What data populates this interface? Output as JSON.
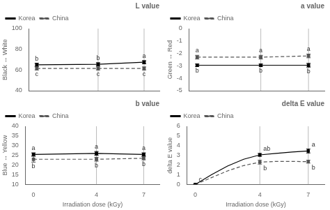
{
  "chart_data": [
    {
      "type": "line",
      "title": "L value",
      "y_label": "Black ↔ White",
      "x": [
        0,
        4,
        7
      ],
      "xlim": [
        -0.5,
        8
      ],
      "xticks": [
        0,
        4,
        7
      ],
      "ylim": [
        40,
        100
      ],
      "yticks": [
        40,
        60,
        80,
        100
      ],
      "grid": false,
      "legend": "upper left",
      "tick_labels": "y",
      "vlines": [
        {
          "x": 4,
          "color": "#aaaaaa"
        },
        {
          "x": 7,
          "color": "#aaaaaa"
        }
      ],
      "series": [
        {
          "name": "Korea",
          "color": "#000000",
          "line_style": "solid",
          "marker": "square",
          "values": [
            65.0,
            65.5,
            67.5
          ],
          "errors": [
            1.5,
            1.5,
            1.5
          ],
          "point_labels": [
            "b",
            "b",
            "a"
          ]
        },
        {
          "name": "China",
          "color": "#555555",
          "line_style": "dashed",
          "marker": "square",
          "values": [
            61.5,
            61.5,
            61.5
          ],
          "errors": [
            1.5,
            1.5,
            1.5
          ],
          "point_labels": [
            "c",
            "c",
            "c"
          ]
        }
      ]
    },
    {
      "type": "line",
      "title": "a value",
      "y_label": "Green ↔ Red",
      "x": [
        0,
        4,
        7
      ],
      "xlim": [
        -0.5,
        8
      ],
      "xticks": [
        0,
        4,
        7
      ],
      "ylim": [
        -5.0,
        0.0
      ],
      "yticks": [
        -5,
        -4,
        -3,
        -2,
        -1,
        0
      ],
      "grid": false,
      "legend": "upper left",
      "tick_labels": "y",
      "vlines": [
        {
          "x": 4,
          "color": "#aaaaaa"
        },
        {
          "x": 7,
          "color": "#aaaaaa"
        }
      ],
      "series": [
        {
          "name": "Korea",
          "color": "#000000",
          "line_style": "solid",
          "marker": "square",
          "values": [
            -2.95,
            -2.95,
            -2.95
          ],
          "errors": [
            0.1,
            0.1,
            0.15
          ],
          "point_labels": [
            "b",
            "b",
            "b"
          ]
        },
        {
          "name": "China",
          "color": "#555555",
          "line_style": "dashed",
          "marker": "square",
          "values": [
            -2.3,
            -2.3,
            -2.2
          ],
          "errors": [
            0.15,
            0.15,
            0.15
          ],
          "point_labels": [
            "a",
            "a",
            "a"
          ]
        }
      ]
    },
    {
      "type": "line",
      "title": "b value",
      "y_label": "Blue ↔ Yellow",
      "x_label": "Irradiation dose (kGy)",
      "x": [
        0,
        4,
        7
      ],
      "xlim": [
        -0.5,
        8
      ],
      "xticks": [
        0,
        4,
        7
      ],
      "ylim": [
        10,
        40
      ],
      "yticks": [
        10,
        15,
        20,
        25,
        30,
        35,
        40
      ],
      "grid": false,
      "legend": "upper left",
      "vlines": [
        {
          "x": 4,
          "color": "#aaaaaa"
        },
        {
          "x": 7,
          "color": "#aaaaaa"
        }
      ],
      "series": [
        {
          "name": "Korea",
          "color": "#000000",
          "line_style": "solid",
          "marker": "square",
          "values": [
            25.5,
            26.0,
            25.5
          ],
          "errors": [
            0.8,
            1.0,
            0.8
          ],
          "point_labels": [
            "a",
            "a",
            "a"
          ]
        },
        {
          "name": "China",
          "color": "#555555",
          "line_style": "dashed",
          "marker": "square",
          "values": [
            23.0,
            23.0,
            23.5
          ],
          "errors": [
            1.5,
            1.0,
            0.8
          ],
          "point_labels": [
            "b",
            "b",
            "b"
          ]
        }
      ]
    },
    {
      "type": "line",
      "title": "delta E value",
      "y_label": "delta E value",
      "x_label": "Irradiation dose (kGy)",
      "xlim": [
        -0.5,
        8
      ],
      "xticks": [
        0,
        4,
        7
      ],
      "ylim": [
        0.0,
        6.0
      ],
      "yticks": [
        0,
        1,
        2,
        3,
        4,
        5,
        6
      ],
      "grid": false,
      "legend": "upper left",
      "vlines": [
        {
          "x": 4,
          "color": "#aaaaaa"
        },
        {
          "x": 7,
          "color": "#aaaaaa"
        }
      ],
      "series": [
        {
          "name": "Korea",
          "color": "#000000",
          "line_style": "solid",
          "marker": "square",
          "x": [
            0,
            1,
            2,
            3,
            4,
            5,
            6,
            7
          ],
          "values": [
            0.0,
            1.0,
            1.9,
            2.6,
            3.05,
            3.2,
            3.35,
            3.45
          ],
          "measured": {
            "x": [
              0,
              4,
              7
            ],
            "values": [
              0.0,
              3.05,
              3.45
            ],
            "errors": [
              0.0,
              0.15,
              0.2
            ],
            "point_labels": [
              "c",
              "ab",
              "a"
            ]
          }
        },
        {
          "name": "China",
          "color": "#555555",
          "line_style": "dashed",
          "marker": "square",
          "x": [
            0,
            1,
            2,
            3,
            4,
            5,
            6,
            7
          ],
          "values": [
            0.0,
            0.7,
            1.4,
            1.95,
            2.3,
            2.38,
            2.38,
            2.35
          ],
          "measured": {
            "x": [
              0,
              4,
              7
            ],
            "values": [
              0.0,
              2.3,
              2.35
            ],
            "errors": [
              0.0,
              0.2,
              0.15
            ],
            "point_labels": [
              null,
              "b",
              "b"
            ]
          }
        }
      ]
    }
  ]
}
